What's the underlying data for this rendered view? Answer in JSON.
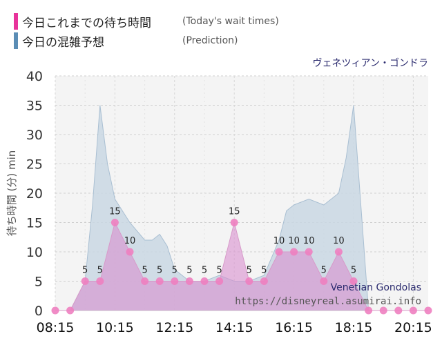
{
  "legend": {
    "actual_label": "今日これまでの待ち時間",
    "actual_en": "(Today's wait times)",
    "prediction_label": "今日の混雑予想",
    "prediction_en": "(Prediction)"
  },
  "colors": {
    "actual": "#e8339b",
    "actual_point": "#ee7fc0",
    "actual_fill": "#d98fcf",
    "prediction": "#5b8db5",
    "prediction_fill": "#c9d7e3",
    "plot_bg": "#f4f4f4",
    "title_color": "#2a2a6e"
  },
  "watermark": {
    "name": "Venetian Gondolas",
    "url": "https://disneyreal.asumirai.info"
  },
  "chart_data": {
    "type": "area",
    "title": "ヴェネツィアン・ゴンドラ",
    "ylabel": "待ち時間 (分) min",
    "xlabel": "",
    "ylim": [
      0,
      40
    ],
    "yticks": [
      0,
      5,
      10,
      15,
      20,
      25,
      30,
      35,
      40
    ],
    "xticks": [
      "08:15",
      "10:15",
      "12:15",
      "14:15",
      "16:15",
      "18:15",
      "20:15"
    ],
    "grid": true,
    "series": [
      {
        "name": "今日これまでの待ち時間",
        "x": [
          "08:15",
          "08:45",
          "09:15",
          "09:45",
          "10:15",
          "10:45",
          "11:15",
          "11:45",
          "12:15",
          "12:45",
          "13:15",
          "13:45",
          "14:15",
          "14:45",
          "15:15",
          "15:45",
          "16:15",
          "16:45",
          "17:15",
          "17:45",
          "18:15",
          "18:45",
          "19:15",
          "19:45",
          "20:15",
          "20:45"
        ],
        "values": [
          0,
          0,
          5,
          5,
          15,
          10,
          5,
          5,
          5,
          5,
          5,
          5,
          15,
          5,
          5,
          10,
          10,
          10,
          5,
          10,
          5,
          0,
          0,
          0,
          0,
          0
        ],
        "data_labels": [
          "",
          "",
          "5",
          "5",
          "15",
          "10",
          "5",
          "5",
          "5",
          "5",
          "5",
          "5",
          "15",
          "5",
          "5",
          "10",
          "10",
          "10",
          "5",
          "10",
          "5",
          "",
          "",
          "",
          "",
          ""
        ]
      },
      {
        "name": "今日の混雑予想",
        "x": [
          "08:15",
          "08:45",
          "09:15",
          "09:30",
          "09:45",
          "10:00",
          "10:15",
          "10:45",
          "11:15",
          "11:30",
          "11:45",
          "12:00",
          "12:15",
          "12:45",
          "13:15",
          "13:45",
          "14:15",
          "14:45",
          "15:15",
          "15:45",
          "16:00",
          "16:15",
          "16:45",
          "17:15",
          "17:45",
          "18:00",
          "18:15",
          "18:45",
          "19:15",
          "20:15",
          "20:45"
        ],
        "values": [
          0,
          0,
          5,
          18,
          35,
          25,
          19,
          15,
          12,
          12,
          13,
          11,
          7,
          5,
          5,
          6,
          5,
          5,
          6,
          12,
          17,
          18,
          19,
          18,
          20,
          26,
          35,
          0,
          0,
          0,
          0
        ]
      }
    ]
  }
}
